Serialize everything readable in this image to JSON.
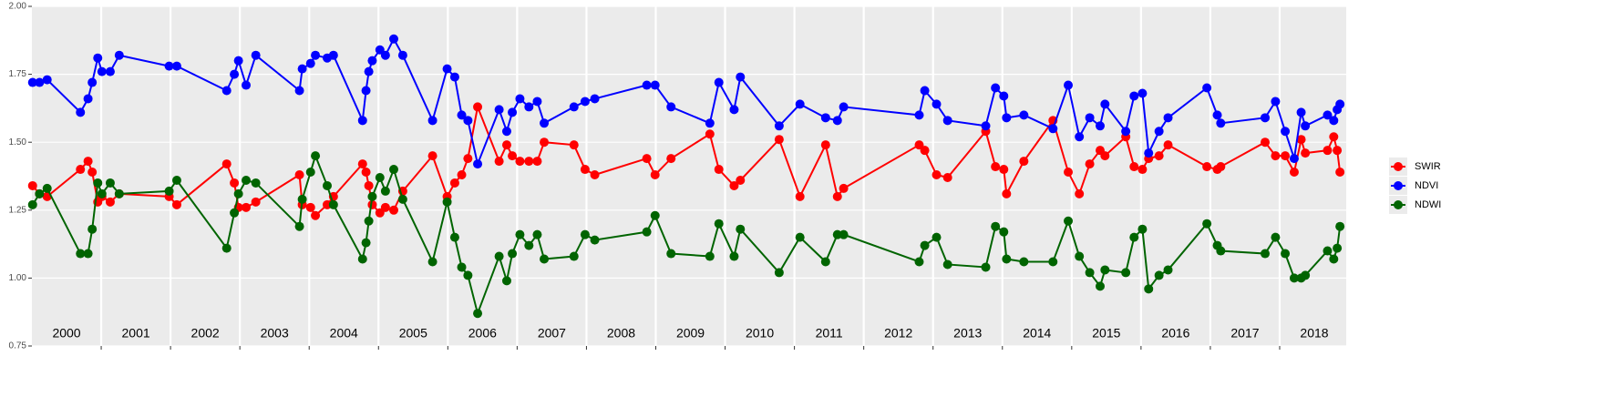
{
  "chart_data": {
    "type": "line",
    "x": [
      2000.01,
      2000.11,
      2000.22,
      2000.7,
      2000.81,
      2000.87,
      2000.95,
      2001.01,
      2001.13,
      2001.26,
      2001.98,
      2002.09,
      2002.81,
      2002.92,
      2002.98,
      2003.09,
      2003.23,
      2003.86,
      2003.9,
      2004.02,
      2004.09,
      2004.26,
      2004.35,
      2004.77,
      2004.82,
      2004.86,
      2004.91,
      2005.02,
      2005.1,
      2005.22,
      2005.35,
      2005.78,
      2005.99,
      2006.1,
      2006.2,
      2006.29,
      2006.43,
      2006.74,
      2006.85,
      2006.93,
      2007.04,
      2007.17,
      2007.29,
      2007.39,
      2007.82,
      2007.98,
      2008.12,
      2008.87,
      2008.99,
      2009.22,
      2009.78,
      2009.91,
      2010.13,
      2010.22,
      2010.78,
      2011.08,
      2011.45,
      2011.62,
      2011.71,
      2012.8,
      2012.88,
      2013.05,
      2013.21,
      2013.76,
      2013.9,
      2014.02,
      2014.06,
      2014.31,
      2014.73,
      2014.95,
      2015.11,
      2015.26,
      2015.41,
      2015.48,
      2015.78,
      2015.9,
      2016.02,
      2016.11,
      2016.26,
      2016.39,
      2016.95,
      2017.1,
      2017.15,
      2017.79,
      2017.94,
      2018.08,
      2018.21,
      2018.31,
      2018.37,
      2018.69,
      2018.78,
      2018.83,
      2018.87
    ],
    "series": [
      {
        "name": "SWIR",
        "color": "#ff0000",
        "values": [
          1.34,
          1.31,
          1.3,
          1.4,
          1.43,
          1.39,
          1.28,
          1.3,
          1.28,
          1.31,
          1.3,
          1.27,
          1.42,
          1.35,
          1.26,
          1.26,
          1.28,
          1.38,
          1.27,
          1.26,
          1.23,
          1.27,
          1.3,
          1.42,
          1.39,
          1.34,
          1.27,
          1.24,
          1.26,
          1.25,
          1.32,
          1.45,
          1.3,
          1.35,
          1.38,
          1.44,
          1.63,
          1.43,
          1.49,
          1.45,
          1.43,
          1.43,
          1.43,
          1.5,
          1.49,
          1.4,
          1.38,
          1.44,
          1.38,
          1.44,
          1.53,
          1.4,
          1.34,
          1.36,
          1.51,
          1.3,
          1.49,
          1.3,
          1.33,
          1.49,
          1.47,
          1.38,
          1.37,
          1.54,
          1.41,
          1.4,
          1.31,
          1.43,
          1.58,
          1.39,
          1.31,
          1.42,
          1.47,
          1.45,
          1.52,
          1.41,
          1.4,
          1.44,
          1.45,
          1.49,
          1.41,
          1.4,
          1.41,
          1.5,
          1.45,
          1.45,
          1.39,
          1.51,
          1.46,
          1.47,
          1.52,
          1.47,
          1.39
        ]
      },
      {
        "name": "NDVI",
        "color": "#0000ff",
        "values": [
          1.72,
          1.72,
          1.73,
          1.61,
          1.66,
          1.72,
          1.81,
          1.76,
          1.76,
          1.82,
          1.78,
          1.78,
          1.69,
          1.75,
          1.8,
          1.71,
          1.82,
          1.69,
          1.77,
          1.79,
          1.82,
          1.81,
          1.82,
          1.58,
          1.69,
          1.76,
          1.8,
          1.84,
          1.82,
          1.88,
          1.82,
          1.58,
          1.77,
          1.74,
          1.6,
          1.58,
          1.42,
          1.62,
          1.54,
          1.61,
          1.66,
          1.63,
          1.65,
          1.57,
          1.63,
          1.65,
          1.66,
          1.71,
          1.71,
          1.63,
          1.57,
          1.72,
          1.62,
          1.74,
          1.56,
          1.64,
          1.59,
          1.58,
          1.63,
          1.6,
          1.69,
          1.64,
          1.58,
          1.56,
          1.7,
          1.67,
          1.59,
          1.6,
          1.55,
          1.71,
          1.52,
          1.59,
          1.56,
          1.64,
          1.54,
          1.67,
          1.68,
          1.46,
          1.54,
          1.59,
          1.7,
          1.6,
          1.57,
          1.59,
          1.65,
          1.54,
          1.44,
          1.61,
          1.56,
          1.6,
          1.58,
          1.62,
          1.64
        ]
      },
      {
        "name": "NDWI",
        "color": "#006400",
        "values": [
          1.27,
          1.31,
          1.33,
          1.09,
          1.09,
          1.18,
          1.35,
          1.31,
          1.35,
          1.31,
          1.32,
          1.36,
          1.11,
          1.24,
          1.31,
          1.36,
          1.35,
          1.19,
          1.29,
          1.39,
          1.45,
          1.34,
          1.27,
          1.07,
          1.13,
          1.21,
          1.3,
          1.37,
          1.32,
          1.4,
          1.29,
          1.06,
          1.28,
          1.15,
          1.04,
          1.01,
          0.87,
          1.08,
          0.99,
          1.09,
          1.16,
          1.12,
          1.16,
          1.07,
          1.08,
          1.16,
          1.14,
          1.17,
          1.23,
          1.09,
          1.08,
          1.2,
          1.08,
          1.18,
          1.02,
          1.15,
          1.06,
          1.16,
          1.16,
          1.06,
          1.12,
          1.15,
          1.05,
          1.04,
          1.19,
          1.17,
          1.07,
          1.06,
          1.06,
          1.21,
          1.08,
          1.02,
          0.97,
          1.03,
          1.02,
          1.15,
          1.18,
          0.96,
          1.01,
          1.03,
          1.2,
          1.12,
          1.1,
          1.09,
          1.15,
          1.09,
          1.0,
          1.0,
          1.01,
          1.1,
          1.07,
          1.11,
          1.19
        ]
      }
    ],
    "xlim": [
      2000,
      2018.96
    ],
    "xticks": [
      2001,
      2002,
      2003,
      2004,
      2005,
      2006,
      2007,
      2008,
      2009,
      2010,
      2011,
      2012,
      2013,
      2014,
      2015,
      2016,
      2017,
      2018
    ],
    "ylim": [
      0.75,
      2.0
    ],
    "yticks": [
      {
        "value": 0.75,
        "label": "0.75"
      },
      {
        "value": 1.0,
        "label": "1.00"
      },
      {
        "value": 1.25,
        "label": "1.25"
      },
      {
        "value": 1.5,
        "label": "1.50"
      },
      {
        "value": 1.75,
        "label": "1.75"
      },
      {
        "value": 2.0,
        "label": "2.00"
      }
    ],
    "year_labels": [
      2000,
      2001,
      2002,
      2003,
      2004,
      2005,
      2006,
      2007,
      2008,
      2009,
      2010,
      2011,
      2012,
      2013,
      2014,
      2015,
      2016,
      2017,
      2018
    ],
    "grid": true,
    "legend": "right"
  }
}
